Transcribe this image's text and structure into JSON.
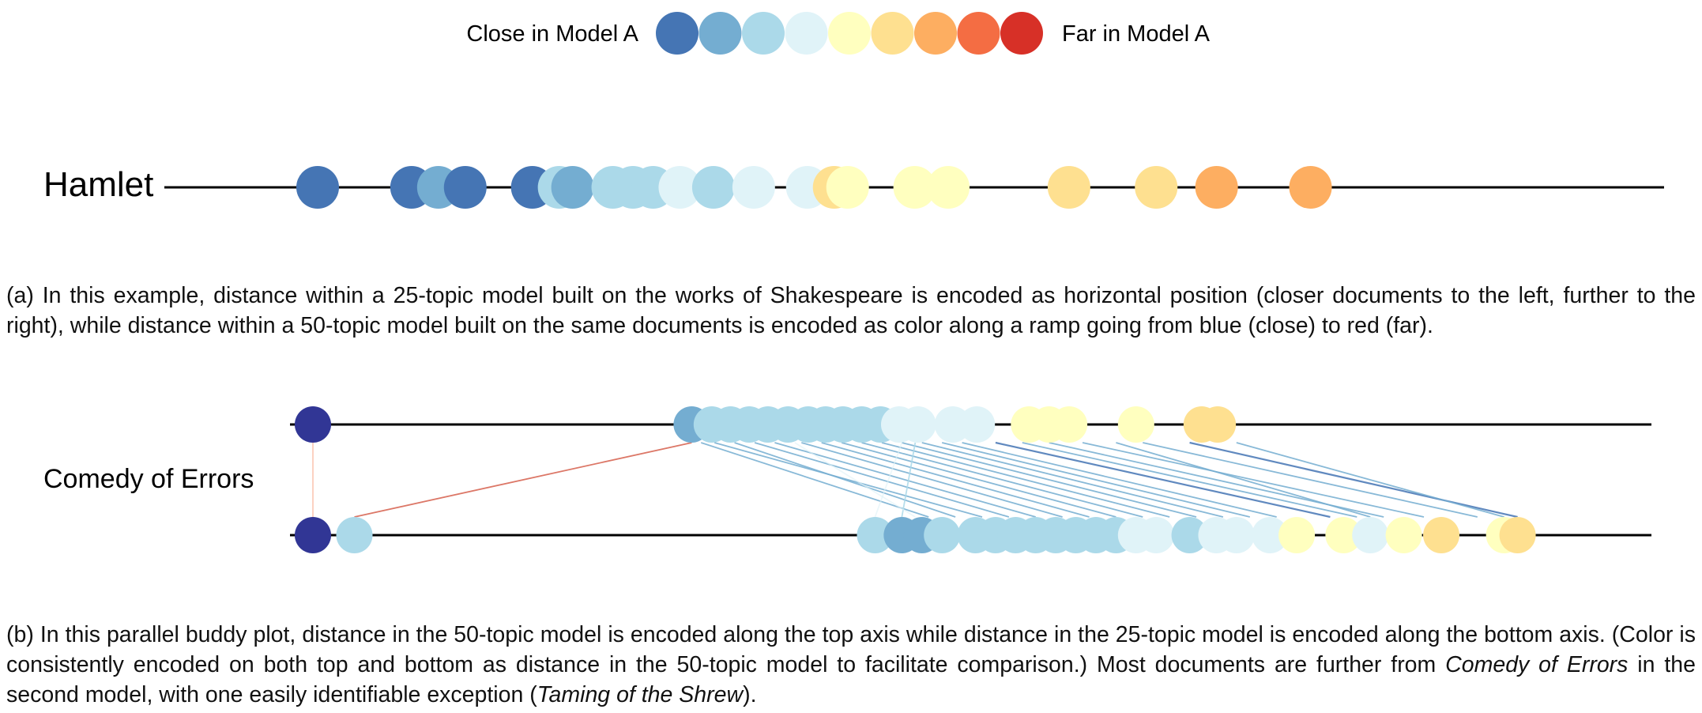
{
  "legend": {
    "left_label": "Close in Model A",
    "right_label": "Far in Model A",
    "ramp_colors": [
      "#4575b4",
      "#74add1",
      "#abd9e9",
      "#e0f3f8",
      "#ffffbf",
      "#fee090",
      "#fdae61",
      "#f46d43",
      "#d73027"
    ]
  },
  "hamlet": {
    "title": "Hamlet",
    "docs": [
      {
        "pos": 0.0,
        "c": 0
      },
      {
        "pos": 0.07,
        "c": 0
      },
      {
        "pos": 0.09,
        "c": 1
      },
      {
        "pos": 0.11,
        "c": 0
      },
      {
        "pos": 0.16,
        "c": 0
      },
      {
        "pos": 0.18,
        "c": 2
      },
      {
        "pos": 0.19,
        "c": 1
      },
      {
        "pos": 0.22,
        "c": 2
      },
      {
        "pos": 0.235,
        "c": 2
      },
      {
        "pos": 0.25,
        "c": 2
      },
      {
        "pos": 0.27,
        "c": 3
      },
      {
        "pos": 0.295,
        "c": 2
      },
      {
        "pos": 0.325,
        "c": 3
      },
      {
        "pos": 0.365,
        "c": 3
      },
      {
        "pos": 0.385,
        "c": 5
      },
      {
        "pos": 0.395,
        "c": 4
      },
      {
        "pos": 0.445,
        "c": 4
      },
      {
        "pos": 0.47,
        "c": 4
      },
      {
        "pos": 0.56,
        "c": 5
      },
      {
        "pos": 0.625,
        "c": 5
      },
      {
        "pos": 0.67,
        "c": 6
      },
      {
        "pos": 0.74,
        "c": 6
      }
    ]
  },
  "comedy": {
    "title": "Comedy of Errors",
    "focus_color": "#313695",
    "buddy_links": [
      {
        "top": 0.0,
        "bottom": 0.0,
        "c": 7
      },
      {
        "top": 0.283,
        "bottom": 0.031,
        "c": 8
      },
      {
        "top": 0.29,
        "bottom": 0.46,
        "c": 1
      },
      {
        "top": 0.3,
        "bottom": 0.5,
        "c": 1
      },
      {
        "top": 0.315,
        "bottom": 0.48,
        "c": 1
      },
      {
        "top": 0.33,
        "bottom": 0.52,
        "c": 1
      },
      {
        "top": 0.345,
        "bottom": 0.54,
        "c": 1
      },
      {
        "top": 0.365,
        "bottom": 0.56,
        "c": 1
      },
      {
        "top": 0.38,
        "bottom": 0.58,
        "c": 1
      },
      {
        "top": 0.395,
        "bottom": 0.6,
        "c": 1
      },
      {
        "top": 0.41,
        "bottom": 0.62,
        "c": 1
      },
      {
        "top": 0.425,
        "bottom": 0.64,
        "c": 1
      },
      {
        "top": 0.44,
        "bottom": 0.66,
        "c": 1
      },
      {
        "top": 0.455,
        "bottom": 0.68,
        "c": 1
      },
      {
        "top": 0.47,
        "bottom": 0.7,
        "c": 1
      },
      {
        "top": 0.485,
        "bottom": 0.72,
        "c": 1
      },
      {
        "top": 0.51,
        "bottom": 0.76,
        "c": 0
      },
      {
        "top": 0.53,
        "bottom": 0.78,
        "c": 1
      },
      {
        "top": 0.55,
        "bottom": 0.8,
        "c": 1
      },
      {
        "top": 0.575,
        "bottom": 0.83,
        "c": 1
      },
      {
        "top": 0.6,
        "bottom": 0.79,
        "c": 1
      },
      {
        "top": 0.62,
        "bottom": 0.87,
        "c": 1
      },
      {
        "top": 0.655,
        "bottom": 0.9,
        "c": 0
      },
      {
        "top": 0.69,
        "bottom": 0.89,
        "c": 1
      },
      {
        "top": 0.45,
        "bottom": 0.44,
        "c": 2
      },
      {
        "top": 0.44,
        "bottom": 0.42,
        "c": 3
      },
      {
        "top": 0.36,
        "bottom": 0.45,
        "c": 3
      }
    ],
    "top_docs": [
      {
        "pos": 0.0,
        "c": -1
      },
      {
        "pos": 0.283,
        "c": 1
      },
      {
        "pos": 0.298,
        "c": 2
      },
      {
        "pos": 0.312,
        "c": 2
      },
      {
        "pos": 0.326,
        "c": 2
      },
      {
        "pos": 0.34,
        "c": 2
      },
      {
        "pos": 0.355,
        "c": 2
      },
      {
        "pos": 0.37,
        "c": 2
      },
      {
        "pos": 0.383,
        "c": 2
      },
      {
        "pos": 0.396,
        "c": 2
      },
      {
        "pos": 0.41,
        "c": 2
      },
      {
        "pos": 0.424,
        "c": 2
      },
      {
        "pos": 0.438,
        "c": 3
      },
      {
        "pos": 0.452,
        "c": 3
      },
      {
        "pos": 0.478,
        "c": 3
      },
      {
        "pos": 0.496,
        "c": 3
      },
      {
        "pos": 0.535,
        "c": 4
      },
      {
        "pos": 0.55,
        "c": 4
      },
      {
        "pos": 0.565,
        "c": 4
      },
      {
        "pos": 0.615,
        "c": 4
      },
      {
        "pos": 0.664,
        "c": 5
      },
      {
        "pos": 0.676,
        "c": 5
      }
    ],
    "bottom_docs": [
      {
        "pos": 0.0,
        "c": -1
      },
      {
        "pos": 0.031,
        "c": 2
      },
      {
        "pos": 0.42,
        "c": 2
      },
      {
        "pos": 0.44,
        "c": 1
      },
      {
        "pos": 0.455,
        "c": 1
      },
      {
        "pos": 0.47,
        "c": 2
      },
      {
        "pos": 0.495,
        "c": 2
      },
      {
        "pos": 0.51,
        "c": 2
      },
      {
        "pos": 0.525,
        "c": 2
      },
      {
        "pos": 0.54,
        "c": 2
      },
      {
        "pos": 0.555,
        "c": 2
      },
      {
        "pos": 0.57,
        "c": 2
      },
      {
        "pos": 0.585,
        "c": 2
      },
      {
        "pos": 0.6,
        "c": 2
      },
      {
        "pos": 0.615,
        "c": 3
      },
      {
        "pos": 0.63,
        "c": 3
      },
      {
        "pos": 0.655,
        "c": 2
      },
      {
        "pos": 0.675,
        "c": 3
      },
      {
        "pos": 0.69,
        "c": 3
      },
      {
        "pos": 0.715,
        "c": 3
      },
      {
        "pos": 0.735,
        "c": 4
      },
      {
        "pos": 0.77,
        "c": 4
      },
      {
        "pos": 0.79,
        "c": 3
      },
      {
        "pos": 0.815,
        "c": 4
      },
      {
        "pos": 0.843,
        "c": 5
      },
      {
        "pos": 0.89,
        "c": 4
      },
      {
        "pos": 0.9,
        "c": 5
      }
    ]
  },
  "caption_a": "(a) In this example, distance within a 25-topic model built on the works of Shakespeare is encoded as horizontal position (closer documents to the left, further to the right), while distance within a 50-topic model built on the same documents is encoded as color along a ramp going from blue (close) to red (far).",
  "caption_b": {
    "part1": "(b) In this parallel buddy plot, distance in the 50-topic model is encoded along the top axis while distance in the 25-topic model is encoded along the bottom axis. (Color is consistently encoded on both top and bottom as distance in the 50-topic model to facilitate comparison.) Most documents are further from ",
    "title1": "Comedy of Errors",
    "part2": " in the second model, with one easily identifiable exception (",
    "title2": "Taming of the Shrew",
    "part3": ")."
  }
}
